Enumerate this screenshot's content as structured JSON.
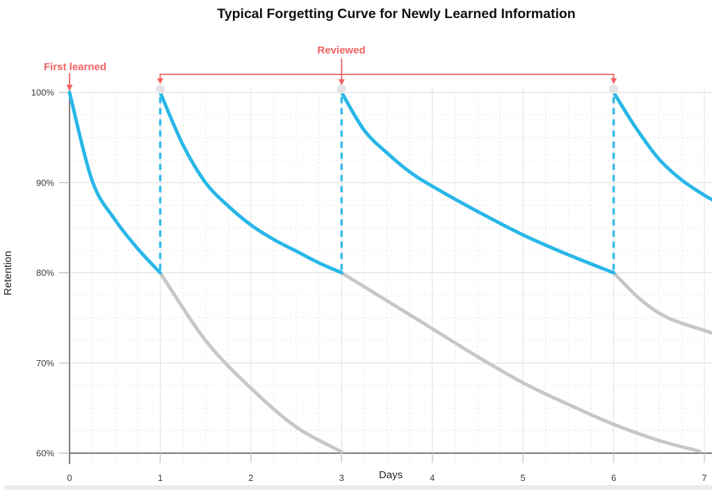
{
  "chart_data": {
    "type": "line",
    "title": "Typical Forgetting Curve for Newly Learned Information",
    "xlabel": "Days",
    "ylabel": "Retention",
    "x_ticks": [
      0,
      1,
      2,
      3,
      4,
      5,
      6,
      7
    ],
    "y_ticks": [
      {
        "value": 60,
        "label": "60%"
      },
      {
        "value": 70,
        "label": "70%"
      },
      {
        "value": 80,
        "label": "80%"
      },
      {
        "value": 90,
        "label": "90%"
      },
      {
        "value": 100,
        "label": "100%"
      }
    ],
    "xlim": [
      0,
      7.09
    ],
    "ylim": [
      60,
      100
    ],
    "grid": {
      "major": true,
      "minor_x_step": 0.25,
      "minor_y_step": 2.5
    },
    "colors": {
      "curve_with_review": "#29b7e8",
      "curve_without_review": "#c7c7c7",
      "review_jump_dash": "#35bce9",
      "review_dot": "#e4e4e6",
      "annotation_red": "#f06161",
      "axis_dark": "#4f4f4f",
      "grid_major": "#e0e0e0",
      "grid_minor": "#d9d9d9",
      "tick_mark": "#c9c9c9"
    },
    "annotations": {
      "first_learned": {
        "label": "First learned",
        "x": 0
      },
      "reviewed": {
        "label": "Reviewed",
        "x": 3,
        "bracket_from": 1,
        "bracket_to": 6
      },
      "review_days": [
        1,
        3,
        6
      ]
    },
    "series": [
      {
        "name": "forgetting-without-review-1",
        "role": "gray",
        "points": [
          [
            1,
            80
          ],
          [
            1.5,
            72.5
          ],
          [
            2,
            67.2
          ],
          [
            2.5,
            62.9
          ],
          [
            3,
            60.15
          ]
        ]
      },
      {
        "name": "forgetting-without-review-2",
        "role": "gray",
        "points": [
          [
            3,
            80
          ],
          [
            3.5,
            76.9
          ],
          [
            4,
            73.8
          ],
          [
            4.5,
            70.7
          ],
          [
            5,
            67.8
          ],
          [
            5.5,
            65.4
          ],
          [
            6,
            63.2
          ],
          [
            6.5,
            61.4
          ],
          [
            6.95,
            60.2
          ]
        ]
      },
      {
        "name": "forgetting-without-review-3",
        "role": "gray",
        "points": [
          [
            6,
            80
          ],
          [
            6.3,
            77.0
          ],
          [
            6.6,
            75.0
          ],
          [
            7,
            73.6
          ],
          [
            7.09,
            73.3
          ]
        ]
      },
      {
        "name": "retention-with-review-1",
        "role": "blue",
        "points": [
          [
            0,
            100
          ],
          [
            0.25,
            90.2
          ],
          [
            0.5,
            85.9
          ],
          [
            0.75,
            82.7
          ],
          [
            1,
            80
          ]
        ]
      },
      {
        "name": "retention-with-review-2",
        "role": "blue",
        "points": [
          [
            1,
            100
          ],
          [
            1.25,
            94.2
          ],
          [
            1.5,
            90.0
          ],
          [
            1.75,
            87.4
          ],
          [
            2,
            85.3
          ],
          [
            2.25,
            83.7
          ],
          [
            2.5,
            82.4
          ],
          [
            2.75,
            81.1
          ],
          [
            3,
            80
          ]
        ]
      },
      {
        "name": "retention-with-review-3",
        "role": "blue",
        "points": [
          [
            3,
            100
          ],
          [
            3.25,
            95.8
          ],
          [
            3.5,
            93.3
          ],
          [
            3.75,
            91.2
          ],
          [
            4,
            89.6
          ],
          [
            4.5,
            86.8
          ],
          [
            5,
            84.2
          ],
          [
            5.5,
            82.0
          ],
          [
            6,
            80
          ]
        ]
      },
      {
        "name": "retention-with-review-4",
        "role": "blue",
        "points": [
          [
            6,
            100
          ],
          [
            6.25,
            96.0
          ],
          [
            6.5,
            92.6
          ],
          [
            6.75,
            90.3
          ],
          [
            7,
            88.6
          ],
          [
            7.09,
            88.1
          ]
        ]
      }
    ],
    "review_jump_lines": {
      "days": [
        1,
        3,
        6
      ],
      "from": 80.3,
      "to": 99.6,
      "style": "dashed"
    }
  }
}
